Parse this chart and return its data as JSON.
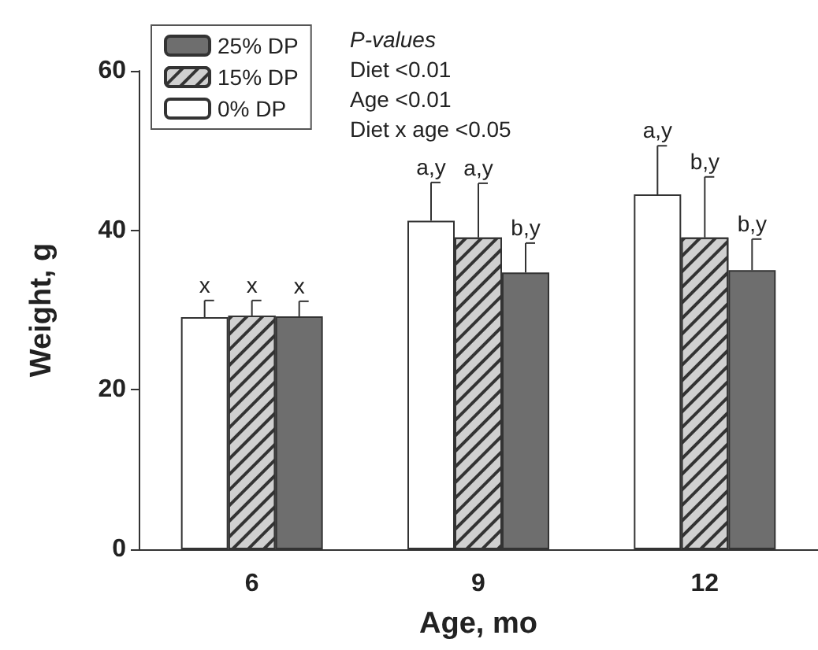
{
  "chart_data": {
    "type": "bar",
    "xlabel": "Age, mo",
    "ylabel": "Weight, g",
    "categories": [
      "6",
      "9",
      "12"
    ],
    "series": [
      {
        "name": "0% DP",
        "color": "#ffffff",
        "values": [
          29.1,
          41.2,
          44.5
        ],
        "errors": [
          [
            29.1,
            31.2
          ],
          [
            41.2,
            46.0
          ],
          [
            44.5,
            50.6
          ]
        ],
        "value_labels": [
          "x",
          "a,y",
          "a,y"
        ]
      },
      {
        "name": "15% DP",
        "color": "#d0d0d0",
        "values": [
          29.3,
          39.1,
          39.1
        ],
        "errors": [
          [
            29.3,
            31.2
          ],
          [
            39.1,
            45.9
          ],
          [
            39.1,
            46.7
          ]
        ],
        "value_labels": [
          "x",
          "a,y",
          "b,y"
        ]
      },
      {
        "name": "25% DP",
        "color": "#6e6e6e",
        "values": [
          29.2,
          34.7,
          35.0
        ],
        "errors": [
          [
            29.2,
            31.1
          ],
          [
            34.7,
            38.4
          ],
          [
            35.0,
            38.9
          ]
        ],
        "value_labels": [
          "x",
          "b,y",
          "b,y"
        ]
      }
    ],
    "ylim": [
      0,
      60
    ],
    "yticks": [
      0,
      20,
      40,
      60
    ],
    "grid": false,
    "legend": "top left",
    "annotations": [
      "P-values",
      "Diet <0.01",
      "Age <0.01",
      "Diet x age <0.05"
    ]
  }
}
